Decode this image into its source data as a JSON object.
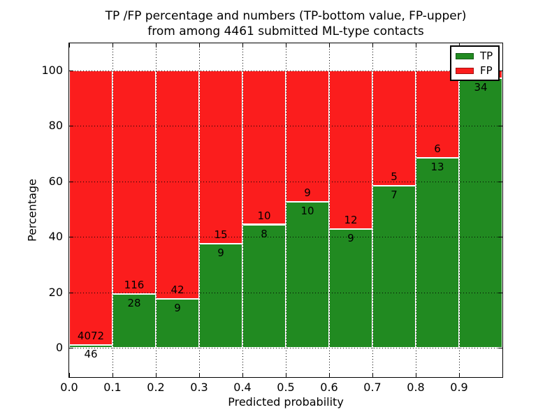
{
  "figure": {
    "title_line1": "TP /FP percentage and numbers (TP-bottom value, FP-upper)",
    "title_line2": "from among 4461 submitted ML-type contacts"
  },
  "chart_data": {
    "type": "bar",
    "stacked": true,
    "normalized_to_percent": true,
    "title": "TP /FP percentage and numbers (TP-bottom value, FP-upper)\nfrom among 4461 submitted ML-type contacts",
    "xlabel": "Predicted probability",
    "ylabel": "Percentage",
    "total_contacts": 4461,
    "bin_width": 0.1,
    "categories": [
      "0.0-0.1",
      "0.1-0.2",
      "0.2-0.3",
      "0.3-0.4",
      "0.4-0.5",
      "0.5-0.6",
      "0.6-0.7",
      "0.7-0.8",
      "0.8-0.9",
      "0.9-1.0"
    ],
    "series": [
      {
        "name": "TP",
        "color": "#218a21",
        "values": [
          46,
          28,
          9,
          9,
          8,
          10,
          9,
          7,
          13,
          34
        ]
      },
      {
        "name": "FP",
        "color": "#fb1d1d",
        "values": [
          4072,
          116,
          42,
          15,
          10,
          9,
          12,
          5,
          6,
          1
        ]
      }
    ],
    "bar_label_note": "TP count below segment boundary, FP count above; FP label of last bar hidden behind legend",
    "x_tick_labels": [
      "0.0",
      "0.1",
      "0.2",
      "0.3",
      "0.4",
      "0.5",
      "0.6",
      "0.7",
      "0.8",
      "0.9"
    ],
    "y_ticks": [
      0,
      20,
      40,
      60,
      80,
      100
    ],
    "y_tick_labels": [
      "0",
      "20",
      "40",
      "60",
      "80",
      "100"
    ],
    "xlim": [
      0.0,
      1.0
    ],
    "ylim": [
      -10.5,
      109.7
    ],
    "grid": true,
    "grid_style": "dotted",
    "legend_position": "upper right"
  },
  "legend": {
    "items": [
      {
        "label": "TP",
        "color": "#218a21"
      },
      {
        "label": "FP",
        "color": "#fb1d1d"
      }
    ]
  }
}
